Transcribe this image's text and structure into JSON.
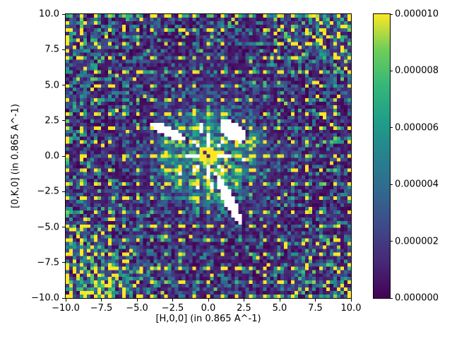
{
  "figure": {
    "background": "#ffffff",
    "text_color": "#000000"
  },
  "axes": {
    "x": {
      "label": "[H,0,0] (in 0.865 A^-1)",
      "min": -10,
      "max": 10,
      "ticks": [
        {
          "value": -10.0,
          "label": "−10.0"
        },
        {
          "value": -7.5,
          "label": "−7.5"
        },
        {
          "value": -5.0,
          "label": "−5.0"
        },
        {
          "value": -2.5,
          "label": "−2.5"
        },
        {
          "value": 0.0,
          "label": "0.0"
        },
        {
          "value": 2.5,
          "label": "2.5"
        },
        {
          "value": 5.0,
          "label": "5.0"
        },
        {
          "value": 7.5,
          "label": "7.5"
        },
        {
          "value": 10.0,
          "label": "10.0"
        }
      ]
    },
    "y": {
      "label": "[0,K,0] (in 0.865 A^-1)",
      "min": -10,
      "max": 10,
      "ticks": [
        {
          "value": 10.0,
          "label": "10.0"
        },
        {
          "value": 7.5,
          "label": "7.5"
        },
        {
          "value": 5.0,
          "label": "5.0"
        },
        {
          "value": 2.5,
          "label": "2.5"
        },
        {
          "value": 0.0,
          "label": "0.0"
        },
        {
          "value": -2.5,
          "label": "−2.5"
        },
        {
          "value": -5.0,
          "label": "−5.0"
        },
        {
          "value": -7.5,
          "label": "−7.5"
        },
        {
          "value": -10.0,
          "label": "−10.0"
        }
      ]
    }
  },
  "colorbar": {
    "min": 0.0,
    "max": 1e-05,
    "colormap": "viridis",
    "stops": [
      "#440154",
      "#472777",
      "#3e4989",
      "#31688e",
      "#26828e",
      "#1f9e89",
      "#35b779",
      "#6ece58",
      "#fde725"
    ],
    "ticks": [
      {
        "value": 0.0,
        "label": "0.000000"
      },
      {
        "value": 2e-06,
        "label": "0.000002"
      },
      {
        "value": 4e-06,
        "label": "0.000004"
      },
      {
        "value": 6e-06,
        "label": "0.000006"
      },
      {
        "value": 8e-06,
        "label": "0.000008"
      },
      {
        "value": 1e-05,
        "label": "0.000010"
      }
    ]
  },
  "chart_data": {
    "type": "heatmap",
    "title": "",
    "xlabel": "[H,0,0] (in 0.865 A^-1)",
    "ylabel": "[0,K,0] (in 0.865 A^-1)",
    "xlim": [
      -10,
      10
    ],
    "ylim": [
      -10,
      10
    ],
    "value_range": [
      0,
      1e-05
    ],
    "legend": "colorbar right, linear scale 0.000000-0.000010",
    "grid": false,
    "description": "Single-crystal reciprocal-space map (elastic scattering intensity) in the (H,K,0) plane. Viridis colormap over speckled exponential noise; bright Bragg peaks on a 1x1 integer grid; intense saturated direct beam at (0,0) with dark attenuated core; diffuse green halo and thin radial streak rays around the origin; white (masked/NaN) detector-gap regions: three elongated lobes near the center plus short white radial dashes around the beam; noise amplitude grows toward the field corners (strongest bottom-left).",
    "heatmap": {
      "bins": 81,
      "vmax": 1e-05,
      "seed": 42,
      "noise": {
        "base": 1.35e-06,
        "radial_coeff": 9e-07,
        "corners": [
          {
            "corner": [
              -10,
              -10
            ],
            "strength": 5.5e-06,
            "sigma": 3.2
          },
          {
            "corner": [
              10,
              10
            ],
            "strength": 3.5e-06,
            "sigma": 3.0
          },
          {
            "corner": [
              -10,
              10
            ],
            "strength": 2e-06,
            "sigma": 2.8
          },
          {
            "corner": [
              10,
              -10
            ],
            "strength": 1.6e-06,
            "sigma": 2.8
          }
        ]
      },
      "central_halo": {
        "amp": 2.6e-06,
        "sigma": 2.4
      },
      "rays": [
        {
          "amp": 2.2e-06,
          "decay": 3.2,
          "count": 8,
          "sharp": 60
        },
        {
          "amp": 1.4e-06,
          "decay": 2.8,
          "count": 16,
          "sharp": 90
        }
      ],
      "bragg": {
        "spacing": 1,
        "halo_amp": 3.8e-06,
        "halo_sigma": 0.32,
        "halo_max_r": 3.6
      },
      "beam": {
        "radius": 0.58,
        "core_value": 1.2e-06,
        "dark_points": [
          [
            0,
            0
          ],
          [
            -0.25,
            0.25
          ]
        ]
      },
      "masks": {
        "ellipses": [
          {
            "center": [
              -2.85,
              1.72
            ],
            "semi": [
              1.5,
              0.36
            ],
            "angle_deg": -25
          },
          {
            "center": [
              1.8,
              1.78
            ],
            "semi": [
              1.02,
              0.62
            ],
            "angle_deg": -33
          },
          {
            "center": [
              1.45,
              -3.1
            ],
            "semi": [
              1.9,
              0.37
            ],
            "angle_deg": -63
          }
        ],
        "dashes": [
          {
            "angle_deg": 0,
            "r0": 0.75,
            "r1": 1.5
          },
          {
            "angle_deg": 45,
            "r0": 0.85,
            "r1": 1.35
          },
          {
            "angle_deg": 90,
            "r0": 0.7,
            "r1": 1.55
          },
          {
            "angle_deg": 103,
            "r0": 1.75,
            "r1": 2.3
          },
          {
            "angle_deg": 135,
            "r0": 0.85,
            "r1": 1.3
          },
          {
            "angle_deg": 180,
            "r0": 0.75,
            "r1": 1.5
          },
          {
            "angle_deg": 225,
            "r0": 0.85,
            "r1": 1.4
          },
          {
            "angle_deg": 270,
            "r0": 0.7,
            "r1": 1.6
          },
          {
            "angle_deg": 279,
            "r0": 1.9,
            "r1": 2.35
          },
          {
            "angle_deg": 315,
            "r0": 0.9,
            "r1": 1.35
          }
        ],
        "dash_halfwidth": 0.13,
        "points": [
          [
            2.25,
            0.95
          ],
          [
            -1.9,
            -1.15
          ],
          [
            1.05,
            2.6
          ],
          [
            -0.65,
            -2.3
          ],
          [
            2.6,
            -0.35
          ],
          [
            0.6,
            -1.35
          ]
        ]
      },
      "diffuse_blobs": [
        {
          "center": [
            2.95,
            1.35
          ],
          "semi": [
            1.0,
            0.5
          ],
          "angle_deg": -30,
          "amp": 2.6e-06
        },
        {
          "center": [
            0.9,
            -2.1
          ],
          "semi": [
            0.9,
            0.5
          ],
          "angle_deg": -63,
          "amp": 2.2e-06
        },
        {
          "center": [
            -3.5,
            2.05
          ],
          "semi": [
            0.85,
            0.4
          ],
          "angle_deg": -25,
          "amp": 1.6e-06
        }
      ]
    }
  }
}
